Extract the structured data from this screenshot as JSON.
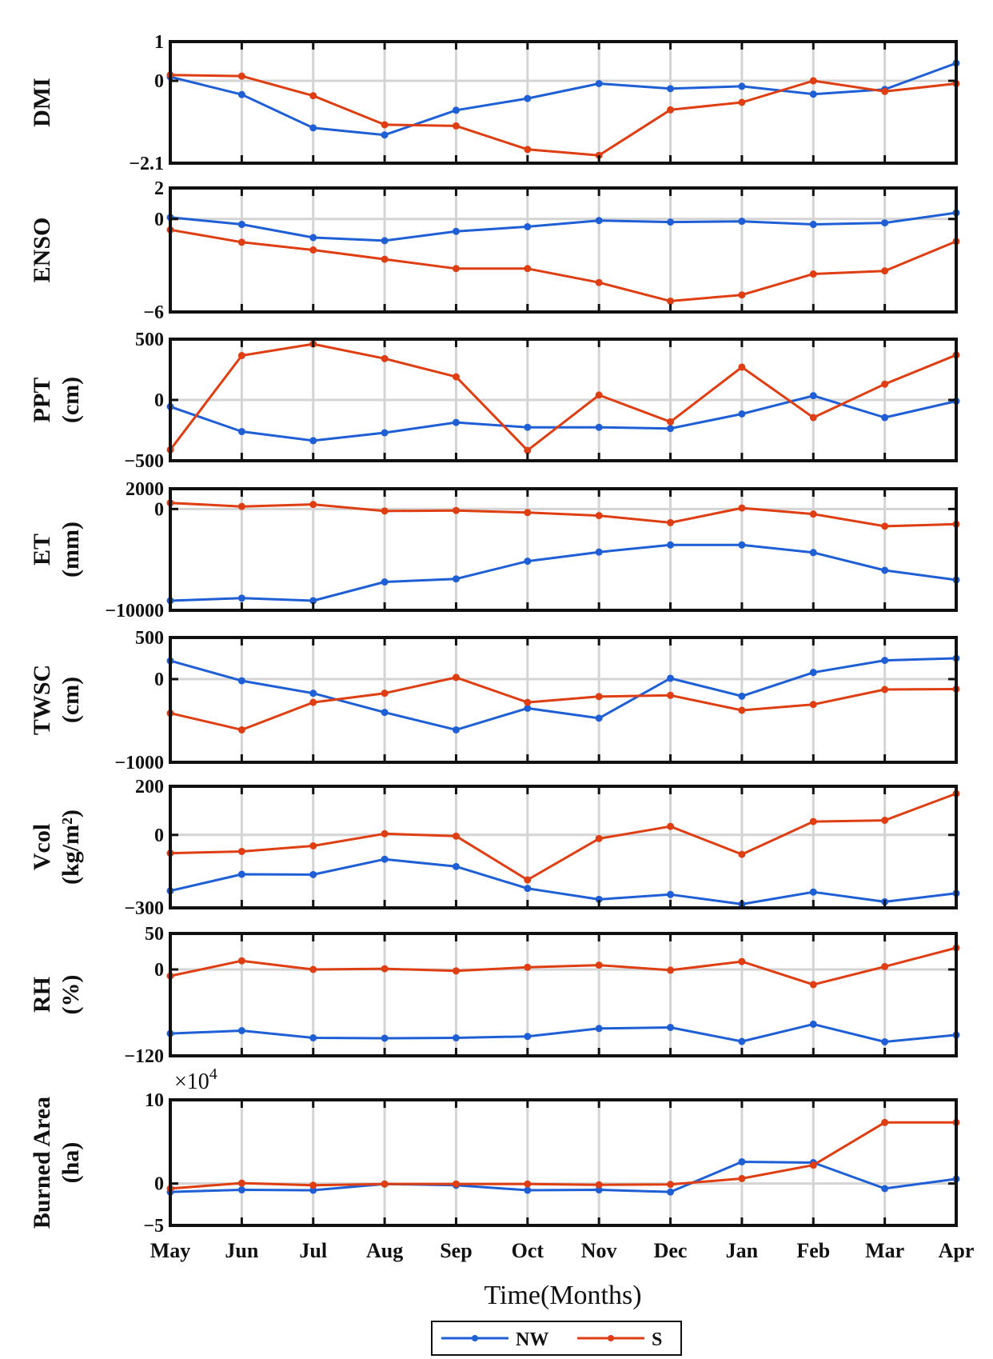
{
  "colors": {
    "NW": "#1f5fd6",
    "S": "#de3e12",
    "grid": "#d4d4d4",
    "axis": "#111111"
  },
  "chart_data": [
    {
      "type": "line",
      "ylabel_lines": [
        "DMI"
      ],
      "ylim": [
        -2.1,
        1
      ],
      "ytick_values": [
        -2.1,
        0,
        1
      ],
      "ytick_labels": [
        "−2.1",
        "0",
        "1"
      ],
      "categories": [
        "May",
        "Jun",
        "Jul",
        "Aug",
        "Sep",
        "Oct",
        "Nov",
        "Dec",
        "Jan",
        "Feb",
        "Mar",
        "Apr"
      ],
      "series": [
        {
          "name": "NW",
          "values": [
            0.1,
            -0.35,
            -1.2,
            -1.38,
            -0.75,
            -0.45,
            -0.07,
            -0.2,
            -0.14,
            -0.34,
            -0.22,
            0.45
          ]
        },
        {
          "name": "S",
          "values": [
            0.15,
            0.12,
            -0.38,
            -1.12,
            -1.15,
            -1.75,
            -1.9,
            -0.74,
            -0.55,
            0.0,
            -0.27,
            -0.07
          ]
        }
      ]
    },
    {
      "type": "line",
      "ylabel_lines": [
        "ENSO"
      ],
      "ylim": [
        -6,
        2
      ],
      "ytick_values": [
        -6,
        0,
        2
      ],
      "ytick_labels": [
        "−6",
        "0",
        "2"
      ],
      "categories": [
        "May",
        "Jun",
        "Jul",
        "Aug",
        "Sep",
        "Oct",
        "Nov",
        "Dec",
        "Jan",
        "Feb",
        "Mar",
        "Apr"
      ],
      "series": [
        {
          "name": "NW",
          "values": [
            0.1,
            -0.35,
            -1.2,
            -1.4,
            -0.8,
            -0.5,
            -0.1,
            -0.2,
            -0.15,
            -0.35,
            -0.25,
            0.4
          ]
        },
        {
          "name": "S",
          "values": [
            -0.7,
            -1.5,
            -2.0,
            -2.6,
            -3.2,
            -3.2,
            -4.1,
            -5.3,
            -4.9,
            -3.55,
            -3.35,
            -1.45
          ]
        }
      ]
    },
    {
      "type": "line",
      "ylabel_lines": [
        "PPT",
        "(cm)"
      ],
      "ylim": [
        -500,
        500
      ],
      "ytick_values": [
        -500,
        0,
        500
      ],
      "ytick_labels": [
        "−500",
        "0",
        "500"
      ],
      "categories": [
        "May",
        "Jun",
        "Jul",
        "Aug",
        "Sep",
        "Oct",
        "Nov",
        "Dec",
        "Jan",
        "Feb",
        "Mar",
        "Apr"
      ],
      "series": [
        {
          "name": "NW",
          "values": [
            -55,
            -260,
            -335,
            -270,
            -185,
            -225,
            -225,
            -235,
            -115,
            35,
            -145,
            -10
          ]
        },
        {
          "name": "S",
          "values": [
            -410,
            365,
            460,
            340,
            190,
            -415,
            40,
            -180,
            270,
            -145,
            130,
            370
          ]
        }
      ]
    },
    {
      "type": "line",
      "ylabel_lines": [
        "ET",
        "(mm)"
      ],
      "ylim": [
        -10000,
        2000
      ],
      "ytick_values": [
        -10000,
        0,
        2000
      ],
      "ytick_labels": [
        "−10000",
        "0",
        "2000"
      ],
      "categories": [
        "May",
        "Jun",
        "Jul",
        "Aug",
        "Sep",
        "Oct",
        "Nov",
        "Dec",
        "Jan",
        "Feb",
        "Mar",
        "Apr"
      ],
      "series": [
        {
          "name": "NW",
          "values": [
            -9050,
            -8800,
            -9050,
            -7200,
            -6900,
            -5150,
            -4250,
            -3550,
            -3550,
            -4300,
            -6050,
            -7000
          ]
        },
        {
          "name": "S",
          "values": [
            600,
            250,
            450,
            -200,
            -150,
            -350,
            -650,
            -1350,
            100,
            -500,
            -1700,
            -1500
          ]
        }
      ]
    },
    {
      "type": "line",
      "ylabel_lines": [
        "TWSC",
        "(cm)"
      ],
      "ylim": [
        -1000,
        500
      ],
      "ytick_values": [
        -1000,
        0,
        500
      ],
      "ytick_labels": [
        "−1000",
        "0",
        "500"
      ],
      "categories": [
        "May",
        "Jun",
        "Jul",
        "Aug",
        "Sep",
        "Oct",
        "Nov",
        "Dec",
        "Jan",
        "Feb",
        "Mar",
        "Apr"
      ],
      "series": [
        {
          "name": "NW",
          "values": [
            220,
            -20,
            -170,
            -400,
            -610,
            -350,
            -470,
            10,
            -205,
            80,
            225,
            250
          ]
        },
        {
          "name": "S",
          "values": [
            -410,
            -610,
            -280,
            -170,
            20,
            -280,
            -210,
            -195,
            -375,
            -305,
            -125,
            -120
          ]
        }
      ]
    },
    {
      "type": "line",
      "ylabel_lines": [
        "Vcol",
        "(kg/m²)"
      ],
      "ylim": [
        -300,
        200
      ],
      "ytick_values": [
        -300,
        0,
        200
      ],
      "ytick_labels": [
        "−300",
        "0",
        "200"
      ],
      "categories": [
        "May",
        "Jun",
        "Jul",
        "Aug",
        "Sep",
        "Oct",
        "Nov",
        "Dec",
        "Jan",
        "Feb",
        "Mar",
        "Apr"
      ],
      "series": [
        {
          "name": "NW",
          "values": [
            -230,
            -162,
            -163,
            -100,
            -130,
            -220,
            -265,
            -245,
            -285,
            -235,
            -275,
            -240
          ]
        },
        {
          "name": "S",
          "values": [
            -75,
            -68,
            -45,
            5,
            -5,
            -185,
            -15,
            35,
            -80,
            55,
            60,
            170
          ]
        }
      ]
    },
    {
      "type": "line",
      "ylabel_lines": [
        "RH",
        "(%)"
      ],
      "ylim": [
        -120,
        50
      ],
      "ytick_values": [
        -120,
        0,
        50
      ],
      "ytick_labels": [
        "−120",
        "0",
        "50"
      ],
      "categories": [
        "May",
        "Jun",
        "Jul",
        "Aug",
        "Sep",
        "Oct",
        "Nov",
        "Dec",
        "Jan",
        "Feb",
        "Mar",
        "Apr"
      ],
      "series": [
        {
          "name": "NW",
          "values": [
            -89,
            -85,
            -95,
            -95.5,
            -95,
            -93,
            -82,
            -80.5,
            -100,
            -76,
            -100.5,
            -91
          ]
        },
        {
          "name": "S",
          "values": [
            -9,
            12,
            0,
            1,
            -2,
            3,
            6,
            -1,
            11,
            -21,
            4,
            30
          ]
        }
      ]
    },
    {
      "type": "line",
      "ylabel_lines": [
        "Burned Area",
        "(ha)"
      ],
      "ylim": [
        -5,
        10
      ],
      "ytick_values": [
        -5,
        0,
        10
      ],
      "ytick_labels": [
        "−5",
        "0",
        "10"
      ],
      "exponent_label": "×10",
      "exponent_power": "4",
      "categories": [
        "May",
        "Jun",
        "Jul",
        "Aug",
        "Sep",
        "Oct",
        "Nov",
        "Dec",
        "Jan",
        "Feb",
        "Mar",
        "Apr"
      ],
      "series": [
        {
          "name": "NW",
          "values": [
            -1.0,
            -0.75,
            -0.8,
            -0.05,
            -0.2,
            -0.8,
            -0.75,
            -1.0,
            2.6,
            2.5,
            -0.6,
            0.55
          ]
        },
        {
          "name": "S",
          "values": [
            -0.6,
            0.05,
            -0.2,
            -0.05,
            -0.05,
            -0.05,
            -0.15,
            -0.1,
            0.6,
            2.2,
            7.3,
            7.3
          ]
        }
      ]
    }
  ],
  "x_axis": {
    "title": "Time(Months)",
    "tick_labels": [
      "May",
      "Jun",
      "Jul",
      "Aug",
      "Sep",
      "Oct",
      "Nov",
      "Dec",
      "Jan",
      "Feb",
      "Mar",
      "Apr"
    ]
  },
  "legend": {
    "placement": "bottom-center",
    "entries": [
      "NW",
      "S"
    ]
  }
}
